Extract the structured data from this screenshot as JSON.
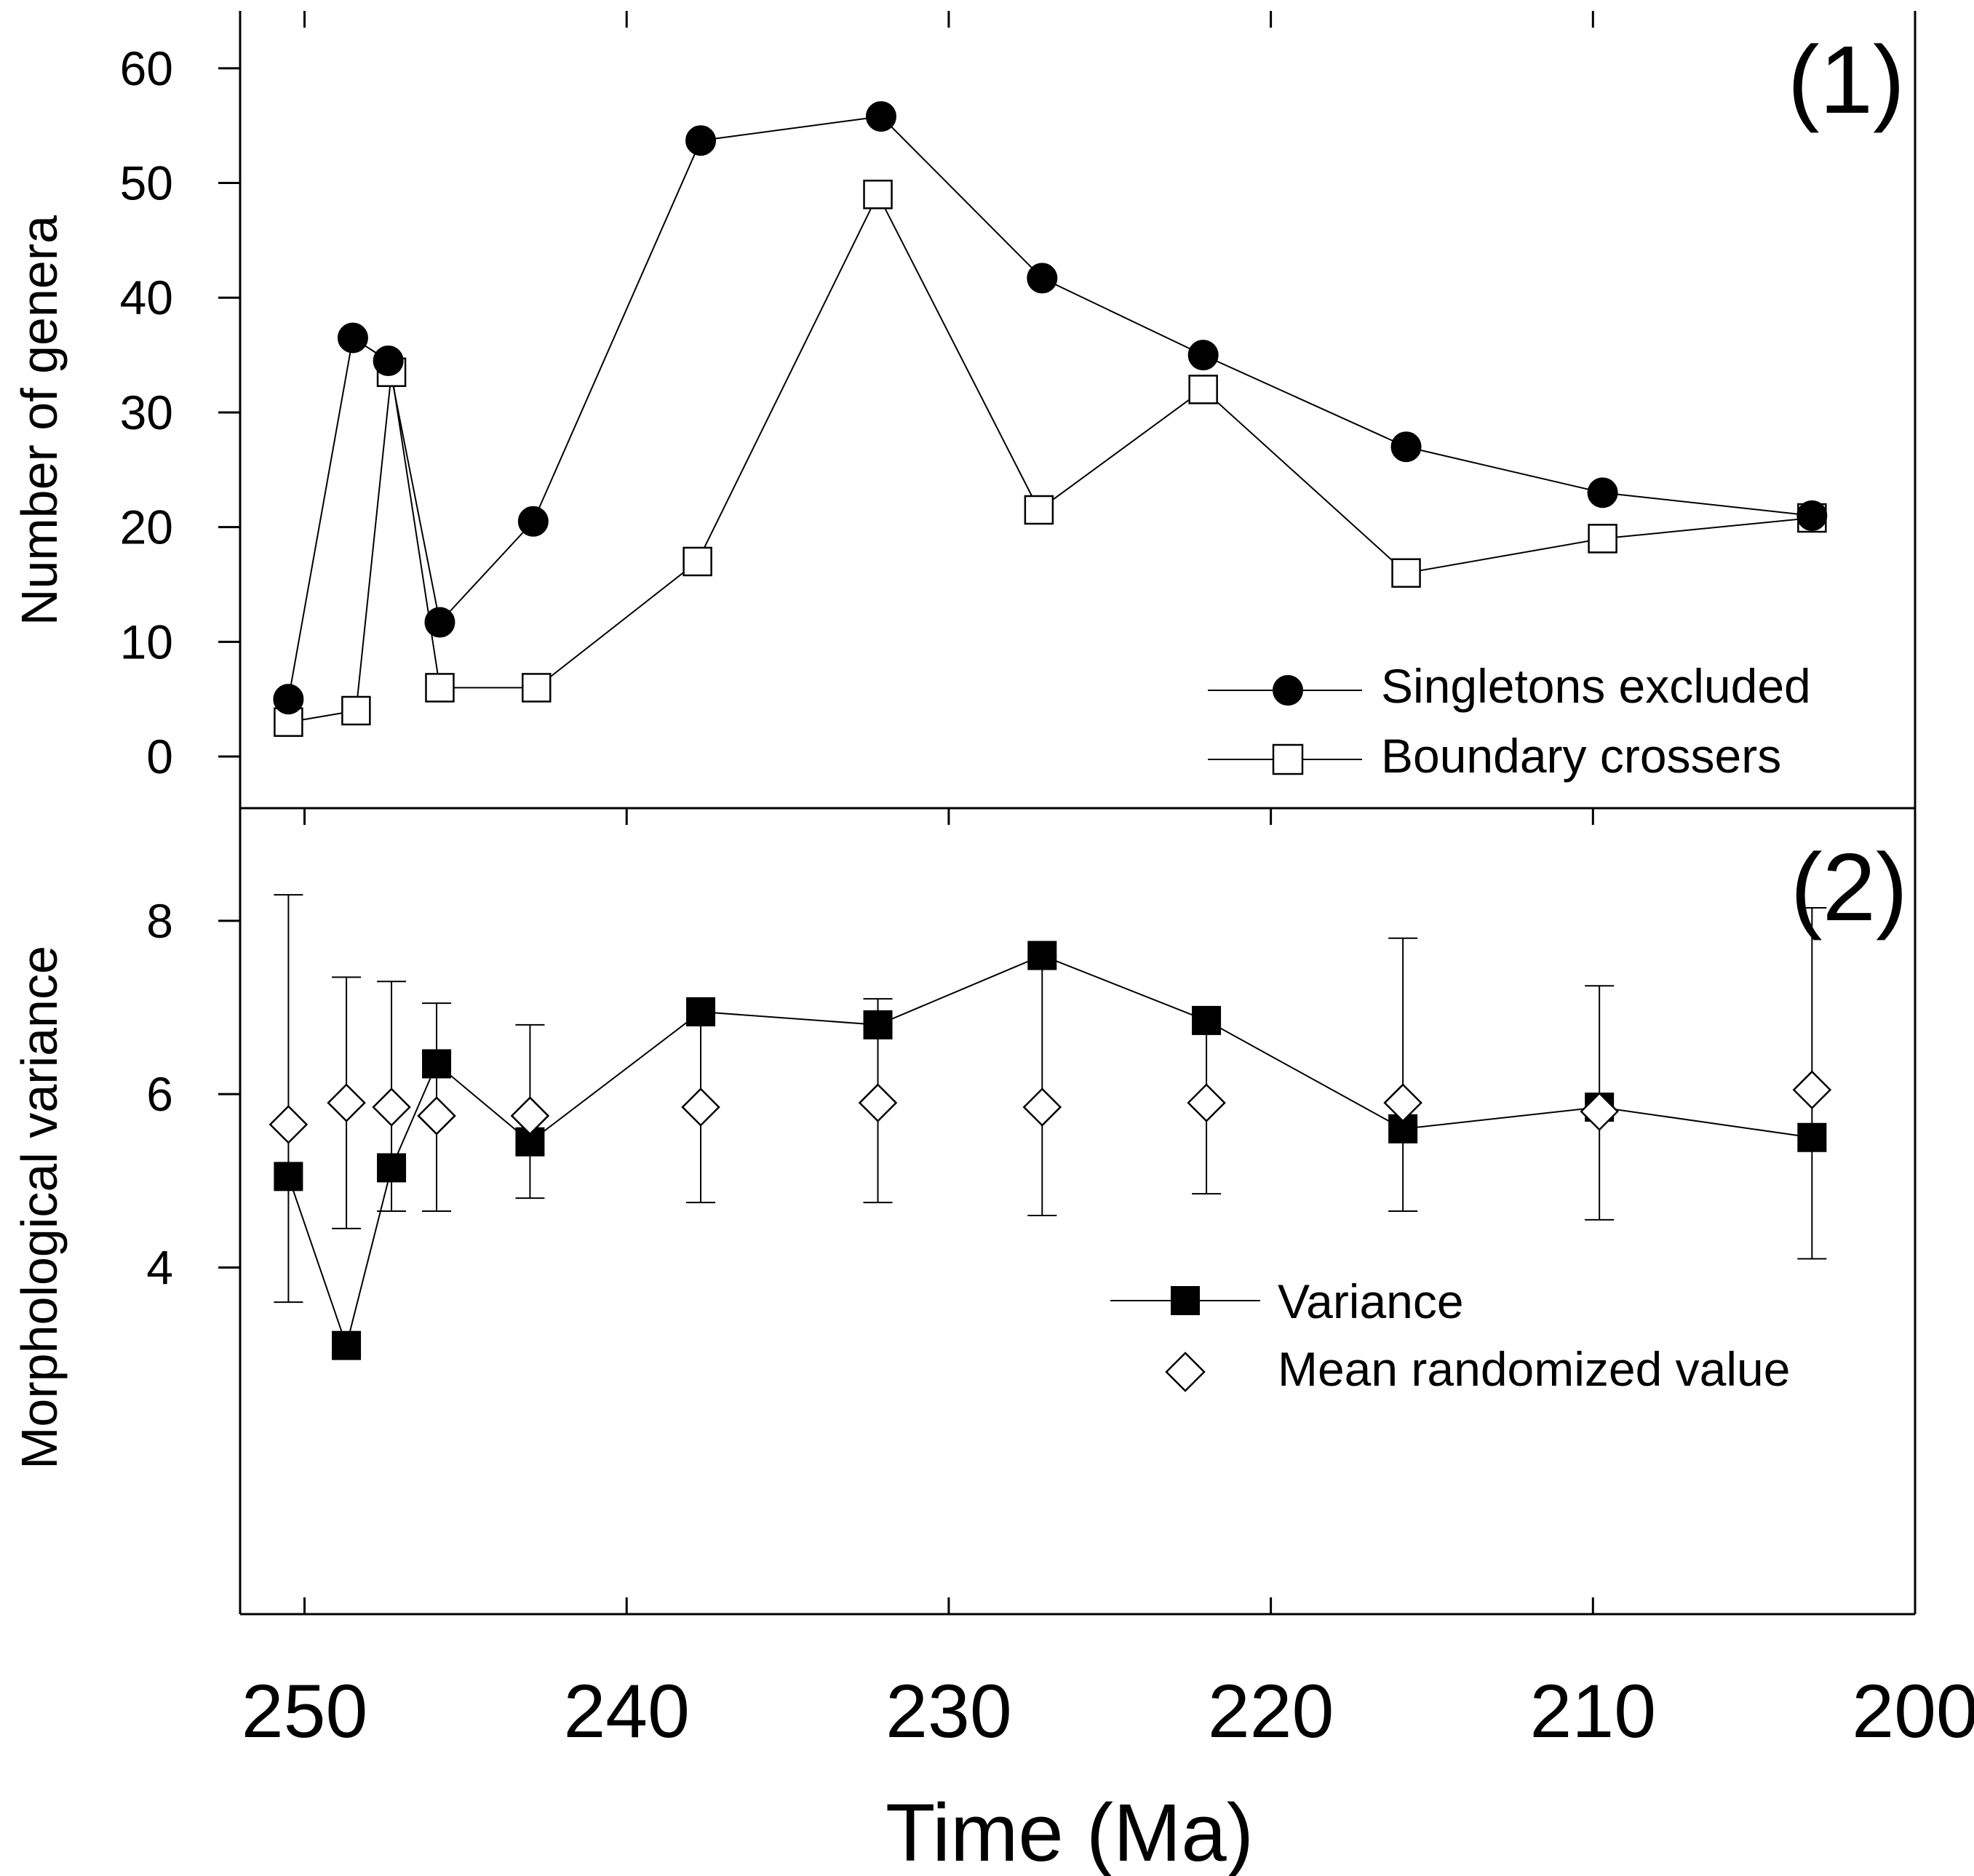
{
  "chart_data": [
    {
      "type": "line",
      "panel_label": "(1)",
      "ylabel": "Number of genera",
      "ylim": [
        -4.5,
        65
      ],
      "yticks": [
        0,
        10,
        20,
        30,
        40,
        50,
        60
      ],
      "xlim": [
        252,
        200
      ],
      "legend_position": "bottom-right",
      "series": [
        {
          "name": "Singletons excluded",
          "marker": "filled-circle",
          "x": [
            250.5,
            248.5,
            247.4,
            245.8,
            242.9,
            237.7,
            232.1,
            227.1,
            222.1,
            215.8,
            209.7,
            203.2
          ],
          "y": [
            5,
            36.5,
            34.5,
            11.7,
            20.5,
            53.7,
            55.8,
            41.7,
            35,
            27,
            23,
            21
          ]
        },
        {
          "name": "Boundary crossers",
          "marker": "open-square",
          "x": [
            250.5,
            248.4,
            247.3,
            245.8,
            242.8,
            237.8,
            232.2,
            227.2,
            222.1,
            215.8,
            209.7,
            203.2
          ],
          "y": [
            3,
            4,
            33.5,
            6,
            6,
            17,
            49,
            21.5,
            32,
            16,
            19,
            20.8
          ]
        }
      ]
    },
    {
      "type": "line",
      "panel_label": "(2)",
      "ylabel": "Morphological variance",
      "ylim": [
        0,
        9.3
      ],
      "yticks": [
        4,
        6,
        8
      ],
      "xlabel": "Time (Ma)",
      "xlim": [
        252,
        200
      ],
      "xticks": [
        250,
        240,
        230,
        220,
        210,
        200
      ],
      "legend_position": "bottom-right",
      "series": [
        {
          "name": "Variance",
          "marker": "filled-square",
          "connected": true,
          "x": [
            250.5,
            248.7,
            247.3,
            245.9,
            243.0,
            237.7,
            232.2,
            227.1,
            222.0,
            215.9,
            209.8,
            203.2
          ],
          "y": [
            5.05,
            3.1,
            5.15,
            6.35,
            5.45,
            6.95,
            6.8,
            7.6,
            6.85,
            5.6,
            5.85,
            5.5
          ]
        },
        {
          "name": "Mean randomized value",
          "marker": "open-diamond",
          "connected": false,
          "x": [
            250.5,
            248.7,
            247.3,
            245.9,
            243.0,
            237.7,
            232.2,
            227.1,
            222.0,
            215.9,
            209.8,
            203.2
          ],
          "y": [
            5.65,
            5.9,
            5.85,
            5.75,
            5.75,
            5.85,
            5.9,
            5.85,
            5.9,
            5.9,
            5.8,
            6.05
          ],
          "err_low": [
            3.6,
            4.45,
            4.65,
            4.65,
            4.8,
            4.75,
            4.75,
            4.6,
            4.85,
            4.65,
            4.55,
            4.1
          ],
          "err_high": [
            8.3,
            7.35,
            7.3,
            7.05,
            6.8,
            6.95,
            7.1,
            7.6,
            6.85,
            7.8,
            7.25,
            8.15
          ]
        }
      ]
    }
  ]
}
